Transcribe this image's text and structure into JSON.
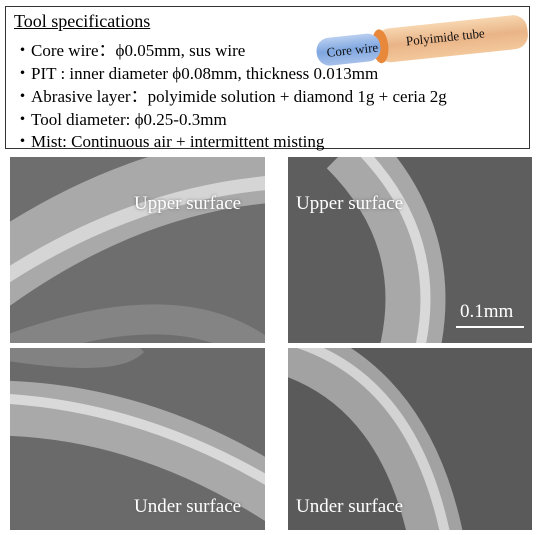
{
  "specs": {
    "title": "Tool specifications",
    "items": [
      "・Core wire：ϕ0.05mm, sus wire",
      "・PIT : inner diameter ϕ0.08mm, thickness 0.013mm",
      "・Abrasive layer：polyimide solution + diamond 1g + ceria 2g",
      "・Tool diameter: ϕ0.25-0.3mm",
      "・Mist:  Continuous air +  intermittent misting"
    ]
  },
  "tube": {
    "core_label": "Core wire",
    "tube_label": "Polyimide tube"
  },
  "images": [
    {
      "label": "Upper surface"
    },
    {
      "label": "Upper surface",
      "scale": "0.1mm"
    },
    {
      "label": "Under surface"
    },
    {
      "label": "Under surface"
    }
  ]
}
